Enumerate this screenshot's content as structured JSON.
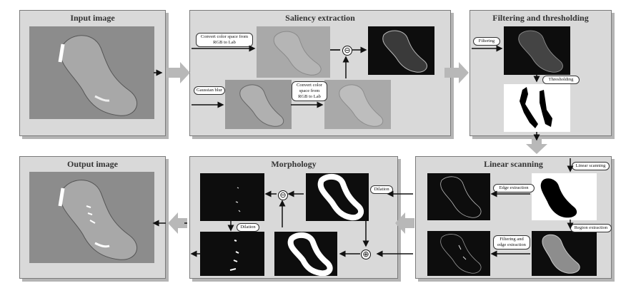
{
  "panels": {
    "input": {
      "title": "Input image"
    },
    "saliency": {
      "title": "Saliency extraction"
    },
    "filtering": {
      "title": "Filtering and thresholding"
    },
    "output": {
      "title": "Output image"
    },
    "morphology": {
      "title": "Morphology"
    },
    "linear": {
      "title": "Linear scanning"
    }
  },
  "labels": {
    "convert_rgb_lab_1": "Convert color space from RGB to Lab",
    "gaussian_blur": "Gaussian blur",
    "convert_rgb_lab_2": "Convert color space from RGB to Lab",
    "filtering": "Filtering",
    "thresholding": "Thresholding",
    "linear_scanning": "Linear scanning",
    "edge_extraction": "Edge extraction",
    "region_extraction": "Region extraction",
    "filtering_edge_extraction": "Filtering and edge extraction",
    "dilation_1": "Dilation",
    "dilation_2": "Dilation"
  },
  "operators": {
    "subtract": "⊖",
    "subtract_morph": "⊖",
    "add": "⊕"
  },
  "colors": {
    "panel_bg": "#d9d9d9",
    "arrow_gray": "#b8b8b8",
    "line": "#111111"
  }
}
